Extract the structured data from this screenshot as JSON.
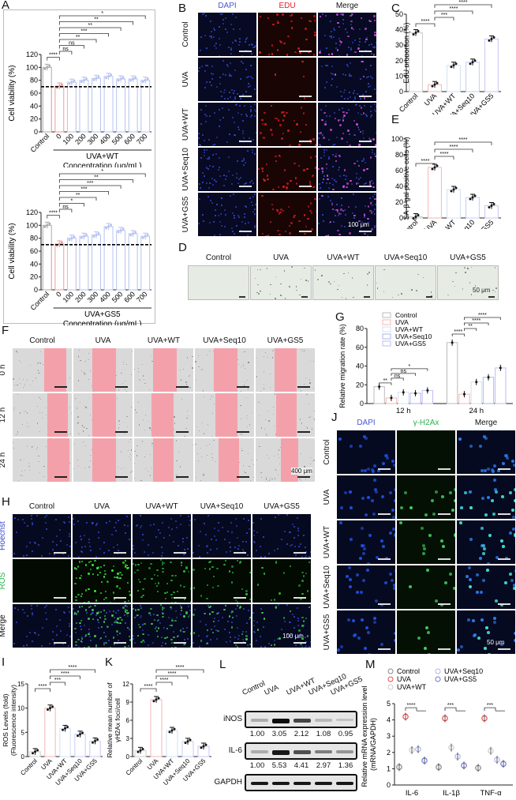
{
  "panels": {
    "A": {
      "label": "A"
    },
    "B": {
      "label": "B",
      "columns": [
        "DAPI",
        "EDU",
        "Merge"
      ],
      "rows": [
        "Control",
        "UVA",
        "UVA+WT",
        "UVA+Seq10",
        "UVA+GS5"
      ],
      "scale": "100 μm",
      "column_colors": [
        "#4a56c8",
        "#e0202a",
        "#111111"
      ]
    },
    "C": {
      "label": "C"
    },
    "D": {
      "label": "D",
      "columns": [
        "Control",
        "UVA",
        "UVA+WT",
        "UVA+Seq10",
        "UVA+GS5"
      ],
      "scale": "50 μm"
    },
    "E": {
      "label": "E"
    },
    "F": {
      "label": "F",
      "columns": [
        "Control",
        "UVA",
        "UVA+WT",
        "UVA+Seq10",
        "UVA+GS5"
      ],
      "rows": [
        "0 h",
        "12 h",
        "24 h"
      ],
      "scale": "400 μm",
      "wound_color": "#f4a0aa"
    },
    "G": {
      "label": "G"
    },
    "H": {
      "label": "H",
      "columns": [
        "Control",
        "UVA",
        "UVA+WT",
        "UVA+Seq10",
        "UVA+GS5"
      ],
      "rows": [
        "Hoechst",
        "ROS",
        "Merge"
      ],
      "row_colors": [
        "#3a4ad0",
        "#22b04a",
        "#111111"
      ],
      "scale": "100 μm"
    },
    "I": {
      "label": "I"
    },
    "J": {
      "label": "J",
      "columns": [
        "DAPI",
        "γ-H2Ax",
        "Merge"
      ],
      "column_colors": [
        "#4a56c8",
        "#2fb050",
        "#111111"
      ],
      "rows": [
        "Control",
        "UVA",
        "UVA+WT",
        "UVA+Seq10",
        "UVA+GS5"
      ],
      "scale": "50 μm"
    },
    "K": {
      "label": "K"
    },
    "L": {
      "label": "L",
      "lanes": [
        "Control",
        "UVA",
        "UVA+WT",
        "UVA+Seq10",
        "UVA+GS5"
      ],
      "blots": [
        {
          "name": "iNOS",
          "values": [
            "1.00",
            "3.05",
            "2.12",
            "1.08",
            "0.95"
          ]
        },
        {
          "name": "IL-6",
          "values": [
            "1.00",
            "5.53",
            "4.41",
            "2.97",
            "1.36"
          ]
        },
        {
          "name": "GAPDH",
          "values": []
        }
      ]
    },
    "M": {
      "label": "M"
    }
  },
  "chart_data": [
    {
      "id": "A1",
      "type": "bar",
      "title": "",
      "ylabel": "Cell viability (%)",
      "xlabel": "Concentration (μg/mL)",
      "group_label": "UVA+WT",
      "categories": [
        "Control",
        "0",
        "100",
        "200",
        "300",
        "400",
        "500",
        "600",
        "700"
      ],
      "values": [
        100,
        71,
        77,
        80,
        83,
        86,
        82,
        82,
        80
      ],
      "ylim": [
        0,
        120
      ],
      "yticks": [
        0,
        20,
        40,
        60,
        80,
        100,
        120
      ],
      "reference_line": 70,
      "significance": [
        {
          "from": "Control",
          "to": "0",
          "label": "****"
        },
        {
          "from": "0",
          "to": "100",
          "label": "ns"
        },
        {
          "from": "0",
          "to": "200",
          "label": "ns"
        },
        {
          "from": "0",
          "to": "300",
          "label": "**"
        },
        {
          "from": "0",
          "to": "400",
          "label": "***"
        },
        {
          "from": "0",
          "to": "500",
          "label": "**"
        },
        {
          "from": "0",
          "to": "600",
          "label": "**"
        },
        {
          "from": "0",
          "to": "700",
          "label": "*"
        }
      ]
    },
    {
      "id": "A2",
      "type": "bar",
      "ylabel": "Cell viability (%)",
      "xlabel": "Concentration (μg/mL)",
      "group_label": "UVA+GS5",
      "categories": [
        "Control",
        "0",
        "100",
        "200",
        "300",
        "400",
        "500",
        "600",
        "700"
      ],
      "values": [
        100,
        71,
        80,
        83,
        85,
        98,
        92,
        87,
        83
      ],
      "ylim": [
        0,
        120
      ],
      "yticks": [
        0,
        20,
        40,
        60,
        80,
        100,
        120
      ],
      "reference_line": 70,
      "significance": [
        {
          "from": "Control",
          "to": "0",
          "label": "****"
        },
        {
          "from": "0",
          "to": "100",
          "label": "ns"
        },
        {
          "from": "0",
          "to": "200",
          "label": "*"
        },
        {
          "from": "0",
          "to": "300",
          "label": "**"
        },
        {
          "from": "0",
          "to": "400",
          "label": "***"
        },
        {
          "from": "0",
          "to": "500",
          "label": "***"
        },
        {
          "from": "0",
          "to": "600",
          "label": "**"
        },
        {
          "from": "0",
          "to": "700",
          "label": "*"
        }
      ]
    },
    {
      "id": "C",
      "type": "bar",
      "ylabel": "EdU proportion (%)",
      "categories": [
        "Control",
        "UVA",
        "UVA+WT",
        "UVA+Seq10",
        "UVA+GS5"
      ],
      "values": [
        38,
        4.5,
        17,
        19,
        34
      ],
      "ylim": [
        0,
        50
      ],
      "yticks": [
        0,
        10,
        20,
        30,
        40,
        50
      ],
      "significance": [
        {
          "from": "Control",
          "to": "UVA",
          "label": "****"
        },
        {
          "from": "UVA",
          "to": "UVA+WT",
          "label": "***"
        },
        {
          "from": "UVA",
          "to": "UVA+Seq10",
          "label": "****"
        },
        {
          "from": "UVA",
          "to": "UVA+GS5",
          "label": "****"
        }
      ]
    },
    {
      "id": "E",
      "type": "bar",
      "ylabel": "SA-β-gal positive cells (%)",
      "categories": [
        "Control",
        "UVA",
        "UVA+WT",
        "UVA+Seq10",
        "UVA+GS5"
      ],
      "values": [
        1.5,
        64,
        36,
        26,
        15.5
      ],
      "ylim": [
        0,
        100
      ],
      "yticks": [
        0,
        20,
        40,
        60,
        80,
        100
      ],
      "significance": [
        {
          "from": "Control",
          "to": "UVA",
          "label": "****"
        },
        {
          "from": "UVA",
          "to": "UVA+WT",
          "label": "****"
        },
        {
          "from": "UVA",
          "to": "UVA+Seq10",
          "label": "****"
        },
        {
          "from": "UVA",
          "to": "UVA+GS5",
          "label": "****"
        }
      ]
    },
    {
      "id": "G",
      "type": "bar",
      "ylabel": "Relative migration rate (%)",
      "categories": [
        "12 h",
        "24 h"
      ],
      "legend": [
        "Control",
        "UVA",
        "UVA+WT",
        "UVA+Seq10",
        "UVA+GS5"
      ],
      "series": [
        {
          "name": "Control",
          "values": [
            18,
            65
          ]
        },
        {
          "name": "UVA",
          "values": [
            6,
            10
          ]
        },
        {
          "name": "UVA+WT",
          "values": [
            12,
            23
          ]
        },
        {
          "name": "UVA+Seq10",
          "values": [
            11,
            28
          ]
        },
        {
          "name": "UVA+GS5",
          "values": [
            14,
            38
          ]
        }
      ],
      "ylim": [
        0,
        80
      ],
      "yticks": [
        0,
        20,
        40,
        60,
        80
      ],
      "legend_position": "top-left",
      "significance": [
        {
          "group": "12 h",
          "from": "Control",
          "to": "UVA",
          "label": "**"
        },
        {
          "group": "12 h",
          "from": "UVA",
          "to": "UVA+WT",
          "label": "ns"
        },
        {
          "group": "12 h",
          "from": "UVA",
          "to": "UVA+Seq10",
          "label": "ns"
        },
        {
          "group": "12 h",
          "from": "UVA",
          "to": "UVA+GS5",
          "label": "*"
        },
        {
          "group": "24 h",
          "from": "Control",
          "to": "UVA",
          "label": "****"
        },
        {
          "group": "24 h",
          "from": "UVA",
          "to": "UVA+WT",
          "label": "**"
        },
        {
          "group": "24 h",
          "from": "UVA",
          "to": "UVA+Seq10",
          "label": "****"
        },
        {
          "group": "24 h",
          "from": "UVA",
          "to": "UVA+GS5",
          "label": "****"
        }
      ]
    },
    {
      "id": "I",
      "type": "bar",
      "ylabel": "ROS Levels (fold) (Fluorescence intensity)",
      "categories": [
        "Control",
        "UVA",
        "UVA+WT",
        "UVA+Seq10",
        "UVA+GS5"
      ],
      "values": [
        1.0,
        10.0,
        5.8,
        4.6,
        3.2
      ],
      "ylim": [
        0,
        15
      ],
      "yticks": [
        0,
        5,
        10,
        15
      ],
      "significance": [
        {
          "from": "Control",
          "to": "UVA",
          "label": "****"
        },
        {
          "from": "UVA",
          "to": "UVA+WT",
          "label": "***"
        },
        {
          "from": "UVA",
          "to": "UVA+Seq10",
          "label": "****"
        },
        {
          "from": "UVA",
          "to": "UVA+GS5",
          "label": "****"
        }
      ]
    },
    {
      "id": "K",
      "type": "bar",
      "ylabel": "Relative mean number of γH2Ax foci/cell",
      "categories": [
        "Control",
        "UVA",
        "UVA+WT",
        "UVA+Seq10",
        "UVA+GS5"
      ],
      "values": [
        1.0,
        9.4,
        4.3,
        2.5,
        1.7
      ],
      "ylim": [
        0,
        12
      ],
      "yticks": [
        0,
        3,
        6,
        9,
        12
      ],
      "significance": [
        {
          "from": "Control",
          "to": "UVA",
          "label": "****"
        },
        {
          "from": "UVA",
          "to": "UVA+WT",
          "label": "****"
        },
        {
          "from": "UVA",
          "to": "UVA+Seq10",
          "label": "****"
        },
        {
          "from": "UVA",
          "to": "UVA+GS5",
          "label": "****"
        }
      ]
    },
    {
      "id": "M",
      "type": "scatter",
      "ylabel": "Relative mRNA expression level (mRNA/GAPDH)",
      "categories": [
        "IL-6",
        "IL-1β",
        "TNF-α"
      ],
      "legend": [
        "Control",
        "UVA",
        "UVA+WT",
        "UVA+Seq10",
        "UVA+GS5"
      ],
      "series": [
        {
          "name": "Control",
          "values": [
            1.1,
            1.1,
            1.05
          ]
        },
        {
          "name": "UVA",
          "values": [
            4.2,
            4.1,
            4.1
          ]
        },
        {
          "name": "UVA+WT",
          "values": [
            2.15,
            2.3,
            2.1
          ]
        },
        {
          "name": "UVA+Seq10",
          "values": [
            2.2,
            1.75,
            1.55
          ]
        },
        {
          "name": "UVA+GS5",
          "values": [
            1.5,
            1.2,
            1.3
          ]
        }
      ],
      "ylim": [
        0,
        5
      ],
      "yticks": [
        0,
        1,
        2,
        3,
        4,
        5
      ],
      "significance": [
        {
          "group": "IL-6",
          "label": "****"
        },
        {
          "group": "IL-1β",
          "label": "***"
        },
        {
          "group": "TNF-α",
          "label": "***"
        }
      ]
    }
  ]
}
